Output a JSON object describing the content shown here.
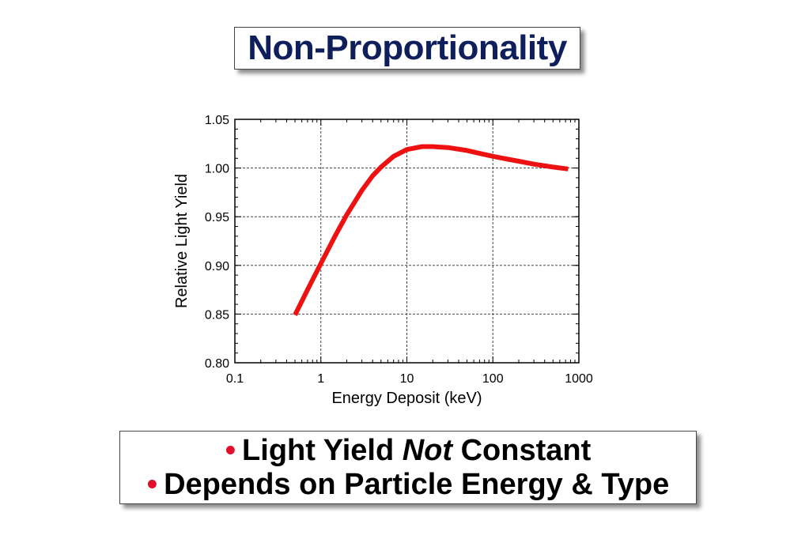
{
  "slide": {
    "title": "Non-Proportionality",
    "colors": {
      "title": "#0e1f5b",
      "bullet": "#e0102a",
      "curve": "#ee1111"
    }
  },
  "bullets": {
    "symbol": "•",
    "line1_pre": "Light Yield ",
    "line1_em": "Not",
    "line1_post": " Constant",
    "line2": "Depends on Particle Energy & Type"
  },
  "chart_data": {
    "type": "line",
    "xlabel": "Energy Deposit (keV)",
    "ylabel": "Relative Light Yield",
    "xscale": "log",
    "xlim": [
      0.1,
      1000
    ],
    "ylim": [
      0.8,
      1.05
    ],
    "xticks": [
      0.1,
      1,
      10,
      100,
      1000
    ],
    "xtick_labels": [
      "0.1",
      "1",
      "10",
      "100",
      "1000"
    ],
    "yticks": [
      0.8,
      0.85,
      0.9,
      0.95,
      1.0,
      1.05
    ],
    "ytick_labels": [
      "0.80",
      "0.85",
      "0.90",
      "0.95",
      "1.00",
      "1.05"
    ],
    "grid": true,
    "series": [
      {
        "x": [
          0.5,
          0.7,
          1.0,
          1.5,
          2.0,
          3.0,
          4.0,
          5.0,
          7.0,
          10,
          15,
          20,
          30,
          50,
          70,
          100,
          150,
          200,
          300,
          500,
          750
        ],
        "y": [
          0.849,
          0.875,
          0.902,
          0.932,
          0.952,
          0.977,
          0.992,
          1.001,
          1.012,
          1.019,
          1.022,
          1.022,
          1.021,
          1.018,
          1.015,
          1.012,
          1.009,
          1.007,
          1.004,
          1.001,
          0.999
        ]
      }
    ]
  }
}
